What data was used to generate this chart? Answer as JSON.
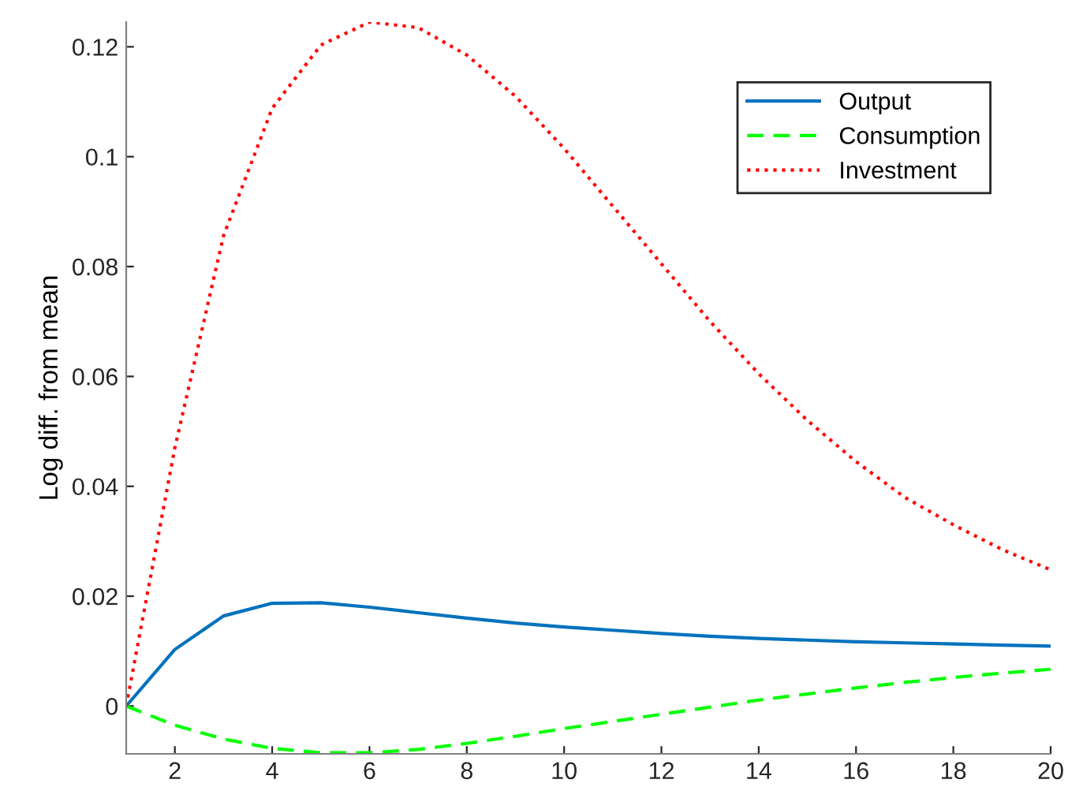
{
  "chart_data": {
    "type": "line",
    "ylabel": "Log diff. from mean",
    "x": [
      1,
      2,
      3,
      4,
      5,
      6,
      7,
      8,
      9,
      10,
      11,
      12,
      13,
      14,
      15,
      16,
      17,
      18,
      19,
      20
    ],
    "series": [
      {
        "name": "Output",
        "color": "#0072bd",
        "line_style": "solid",
        "values": [
          0,
          0.0103,
          0.0164,
          0.0187,
          0.0188,
          0.018,
          0.017,
          0.016,
          0.0151,
          0.0144,
          0.0138,
          0.0132,
          0.0127,
          0.0123,
          0.012,
          0.0117,
          0.0115,
          0.0113,
          0.0111,
          0.0109
        ]
      },
      {
        "name": "Consumption",
        "color": "#00ff00",
        "line_style": "dashed",
        "values": [
          0,
          -0.0035,
          -0.006,
          -0.0077,
          -0.0085,
          -0.0085,
          -0.0079,
          -0.0068,
          -0.0055,
          -0.0041,
          -0.0028,
          -0.0015,
          -0.0002,
          0.0011,
          0.0022,
          0.0033,
          0.0043,
          0.0052,
          0.006,
          0.0067
        ]
      },
      {
        "name": "Investment",
        "color": "#ff0000",
        "line_style": "dotted",
        "values": [
          0,
          0.047,
          0.0856,
          0.1088,
          0.1203,
          0.1245,
          0.1235,
          0.1185,
          0.111,
          0.1015,
          0.091,
          0.0805,
          0.07,
          0.0605,
          0.052,
          0.0445,
          0.038,
          0.033,
          0.0285,
          0.0248
        ]
      }
    ],
    "xlim": [
      1,
      20
    ],
    "xticks": [
      2,
      4,
      6,
      8,
      10,
      12,
      14,
      16,
      18,
      20
    ],
    "ylim": [
      -0.0087,
      0.1245
    ],
    "yticks": [
      0,
      0.02,
      0.04,
      0.06,
      0.08,
      0.1,
      0.12
    ],
    "grid": false,
    "legend": "top right"
  }
}
